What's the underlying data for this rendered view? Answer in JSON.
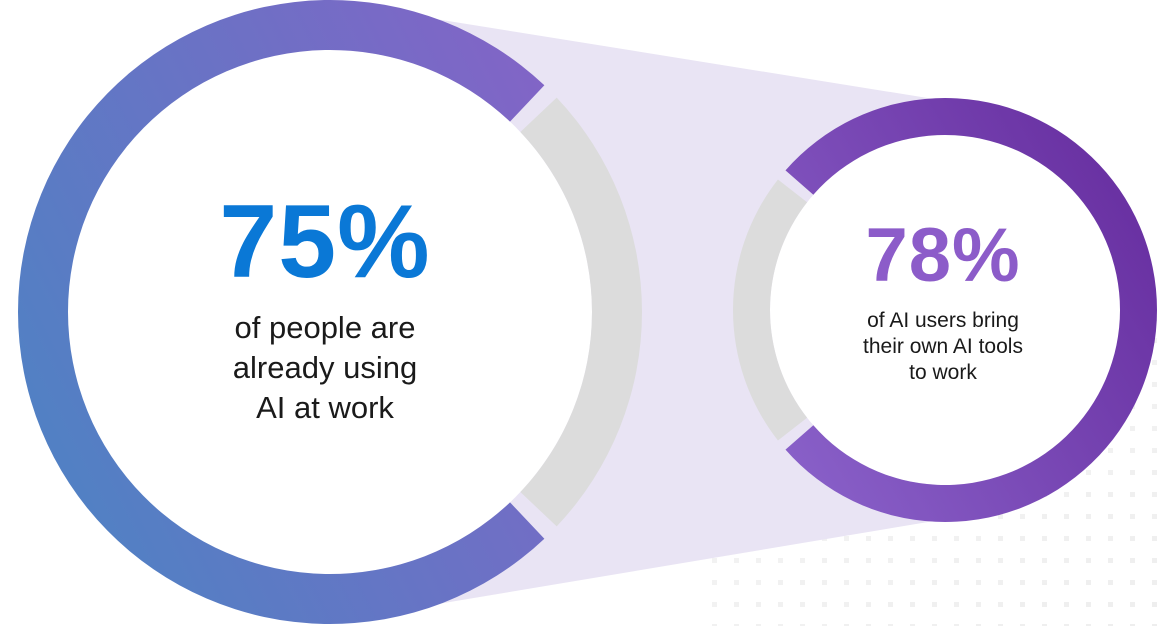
{
  "chart_data": [
    {
      "type": "pie",
      "value": 75,
      "remainder": 25,
      "value_label": "75%",
      "lines": [
        "of people are",
        "already using",
        "AI at work"
      ],
      "value_color": "#0a78d6",
      "colors": {
        "filled_start": "#4f82c4",
        "filled_end": "#8463c6",
        "unfilled": "#dcdcdc"
      }
    },
    {
      "type": "pie",
      "value": 78,
      "remainder": 22,
      "value_label": "78%",
      "lines": [
        "of AI users bring",
        "their own AI tools",
        "to work"
      ],
      "value_color": "#8c5cc9",
      "colors": {
        "filled_start": "#8a62ca",
        "filled_end": "#6a32a3",
        "unfilled": "#dcdcdc"
      }
    }
  ],
  "colors": {
    "connector": "#e9e4f4",
    "dots": "#eeeeee",
    "background": "#ffffff"
  }
}
